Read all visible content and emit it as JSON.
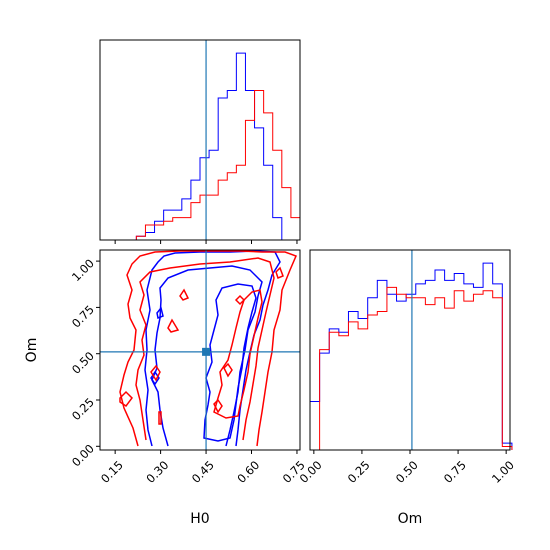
{
  "chart_data": [
    {
      "type": "histogram",
      "panel": "H0 marginal",
      "xlim": [
        0.1,
        0.76
      ],
      "truth_value": 0.45,
      "bin_edges": [
        0.1,
        0.13,
        0.16,
        0.19,
        0.22,
        0.25,
        0.28,
        0.31,
        0.34,
        0.37,
        0.4,
        0.43,
        0.46,
        0.49,
        0.52,
        0.55,
        0.58,
        0.61,
        0.64,
        0.67,
        0.7,
        0.73,
        0.76
      ],
      "series": [
        {
          "name": "",
          "color": "#0000ff",
          "values": [
            0,
            0,
            0,
            0,
            0.5,
            1,
            2.5,
            4,
            4,
            5.5,
            8,
            11,
            12,
            19,
            20,
            25,
            20,
            15,
            10,
            3,
            0,
            0
          ]
        },
        {
          "name": "",
          "color": "#ff0000",
          "values": [
            0,
            0,
            0,
            0,
            0.5,
            2,
            2,
            2.5,
            3,
            3,
            5,
            6,
            6,
            8,
            9,
            10,
            16,
            20,
            17,
            12,
            7,
            3
          ]
        }
      ]
    },
    {
      "type": "contour",
      "panel": "H0 vs Om",
      "xlabel": "H0",
      "ylabel": "Om",
      "xlim": [
        0.1,
        0.76
      ],
      "ylim": [
        -0.02,
        1.06
      ],
      "xticks": [
        "0.15",
        "0.30",
        "0.45",
        "0.60",
        "0.75"
      ],
      "yticks": [
        "0.00",
        "0.25",
        "0.50",
        "0.75",
        "1.00"
      ],
      "truth": {
        "H0": 0.45,
        "Om": 0.51
      },
      "series": [
        {
          "name": "",
          "color": "#0000ff"
        },
        {
          "name": "",
          "color": "#ff0000"
        }
      ]
    },
    {
      "type": "histogram",
      "panel": "Om marginal",
      "xlabel": "Om",
      "xlim": [
        -0.02,
        1.02
      ],
      "xticks": [
        "0.00",
        "0.25",
        "0.50",
        "0.75",
        "1.00"
      ],
      "truth_value": 0.51,
      "bin_edges": [
        -0.02,
        0.03,
        0.08,
        0.13,
        0.18,
        0.23,
        0.28,
        0.33,
        0.38,
        0.43,
        0.48,
        0.53,
        0.58,
        0.63,
        0.68,
        0.73,
        0.78,
        0.83,
        0.88,
        0.93,
        0.98,
        1.03
      ],
      "series": [
        {
          "name": "",
          "color": "#0000ff",
          "values": [
            14,
            28,
            35,
            34,
            40,
            38,
            44,
            49,
            45,
            43,
            45,
            48,
            49,
            52,
            49,
            51,
            48,
            47,
            54,
            48,
            2
          ]
        },
        {
          "name": "",
          "color": "#ff0000",
          "values": [
            0,
            29,
            34,
            33,
            37,
            35,
            39,
            40,
            47,
            45,
            44,
            44,
            42,
            44,
            41,
            46,
            43,
            45,
            46,
            44,
            1
          ]
        }
      ]
    }
  ]
}
